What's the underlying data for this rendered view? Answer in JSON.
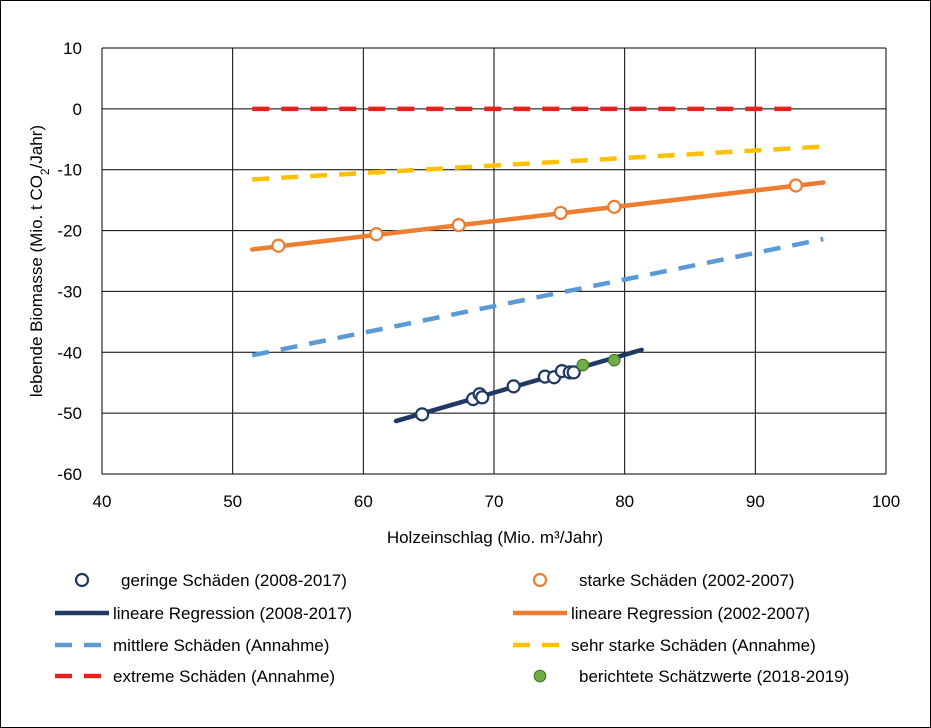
{
  "chart_data": {
    "type": "scatter",
    "xlabel": "Holzeinschlag (Mio. m³/Jahr)",
    "ylabel": "lebende  Biomasse (Mio. t CO₂/Jahr)",
    "xlim": [
      40,
      100
    ],
    "ylim": [
      -60,
      10
    ],
    "x_ticks": [
      40,
      50,
      60,
      70,
      80,
      90,
      100
    ],
    "y_ticks": [
      10,
      0,
      -10,
      -20,
      -30,
      -40,
      -50,
      -60
    ],
    "grid": true,
    "legend_position": "bottom",
    "series": [
      {
        "name": "geringe Schäden (2008-2017)",
        "kind": "marker-open",
        "color": "#203864",
        "points": [
          [
            64.5,
            -50.2
          ],
          [
            68.4,
            -47.7
          ],
          [
            68.9,
            -46.9
          ],
          [
            69.1,
            -47.4
          ],
          [
            71.5,
            -45.6
          ],
          [
            73.9,
            -44.0
          ],
          [
            74.6,
            -44.1
          ],
          [
            75.2,
            -43.1
          ],
          [
            75.8,
            -43.3
          ],
          [
            76.1,
            -43.3
          ]
        ]
      },
      {
        "name": "starke Schäden (2002-2007)",
        "kind": "marker-open",
        "color": "#ED7D31",
        "points": [
          [
            53.5,
            -22.5
          ],
          [
            61.0,
            -20.6
          ],
          [
            67.3,
            -19.1
          ],
          [
            75.1,
            -17.1
          ],
          [
            79.2,
            -16.1
          ],
          [
            93.1,
            -12.6
          ]
        ]
      },
      {
        "name": "lineare Regression (2008-2017)",
        "kind": "line-solid",
        "color": "#203864",
        "points": [
          [
            62.5,
            -51.3
          ],
          [
            81.3,
            -39.6
          ]
        ]
      },
      {
        "name": "lineare Regression (2002-2007)",
        "kind": "line-solid",
        "color": "#ED7D31",
        "points": [
          [
            51.5,
            -23.1
          ],
          [
            95.2,
            -12.1
          ]
        ]
      },
      {
        "name": "mittlere Schäden (Annahme)",
        "kind": "line-dashed",
        "color": "#5B9BD5",
        "points": [
          [
            51.5,
            -40.5
          ],
          [
            95.2,
            -21.4
          ]
        ]
      },
      {
        "name": "sehr starke Schäden (Annahme)",
        "kind": "line-dashed",
        "color": "#FFC000",
        "points": [
          [
            51.5,
            -11.6
          ],
          [
            95.2,
            -6.2
          ]
        ]
      },
      {
        "name": "extreme Schäden (Annahme)",
        "kind": "line-dashed",
        "color": "#E8211D",
        "points": [
          [
            51.5,
            0
          ],
          [
            93.2,
            0
          ]
        ]
      },
      {
        "name": "berichtete Schätzwerte (2018-2019)",
        "kind": "marker-filled",
        "color": "#70AD47",
        "points": [
          [
            76.8,
            -42.1
          ],
          [
            79.2,
            -41.3
          ]
        ]
      }
    ]
  }
}
